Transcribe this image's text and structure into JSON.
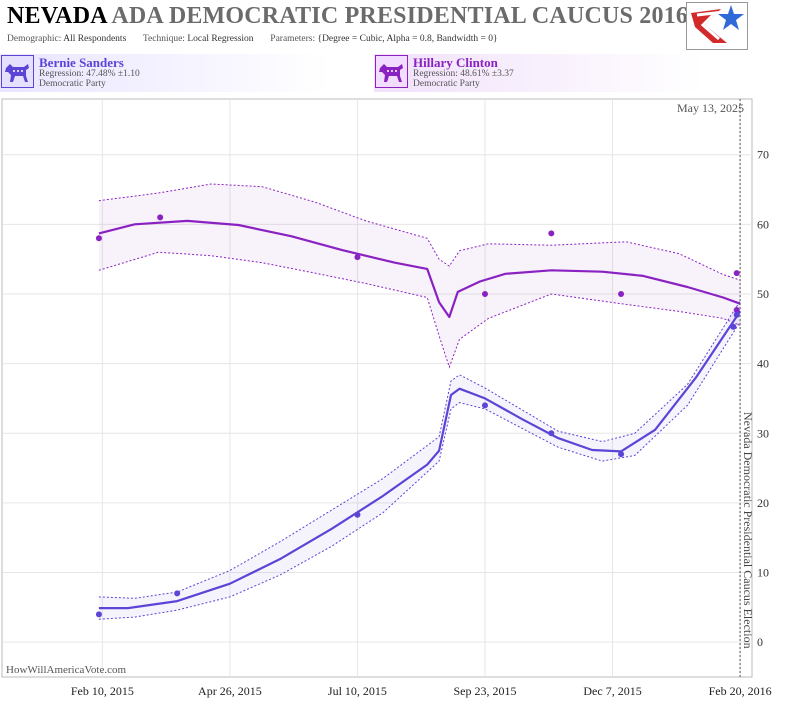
{
  "header": {
    "title_state": "NEVADA",
    "title_rest": "ADA DEMOCRATIC PRESIDENTIAL CAUCUS 2016",
    "demographic_label": "Demographic:",
    "demographic_value": "All Respondents",
    "technique_label": "Technique:",
    "technique_value": "Local Regression",
    "parameters_label": "Parameters:",
    "parameters_value": "{Degree = Cubic, Alpha = 0.8, Bandwidth = 0}"
  },
  "candidates": [
    {
      "name": "Bernie Sanders",
      "regression": "Regression: 47.48% ±1.10",
      "party": "Democratic Party",
      "color": "#5a45d6",
      "icon": "donkey-icon"
    },
    {
      "name": "Hillary Clinton",
      "regression": "Regression: 48.61% ±3.37",
      "party": "Democratic Party",
      "color": "#8a22c2",
      "icon": "donkey-icon"
    }
  ],
  "chart_data": {
    "type": "line",
    "date_annotation": "May 13, 2025",
    "event_label": "Nevada Democratic Presidential Caucus Election",
    "event_date": "2016-02-20",
    "watermark": "HowWillAmericaVote.com",
    "x_ticks": [
      {
        "date": "2015-02-10",
        "label": "Feb 10, 2015"
      },
      {
        "date": "2015-04-26",
        "label": "Apr 26, 2015"
      },
      {
        "date": "2015-07-10",
        "label": "Jul 10, 2015"
      },
      {
        "date": "2015-09-23",
        "label": "Sep 23, 2015"
      },
      {
        "date": "2015-12-07",
        "label": "Dec 7, 2015"
      },
      {
        "date": "2016-02-20",
        "label": "Feb 20, 2016"
      }
    ],
    "xlim": [
      "2014-12-13",
      "2016-02-27"
    ],
    "ylim": [
      -5,
      78
    ],
    "y_ticks": [
      0,
      10,
      20,
      30,
      40,
      50,
      60,
      70
    ],
    "grid": true,
    "series": [
      {
        "name": "Hillary Clinton",
        "color": "#8a22c2",
        "points": [
          {
            "x": "2015-02-08",
            "y": 58
          },
          {
            "x": "2015-03-16",
            "y": 61
          },
          {
            "x": "2015-07-10",
            "y": 55.3
          },
          {
            "x": "2015-09-23",
            "y": 50
          },
          {
            "x": "2015-11-01",
            "y": 58.7
          },
          {
            "x": "2015-12-12",
            "y": 50
          },
          {
            "x": "2016-02-16",
            "y": 45.3
          },
          {
            "x": "2016-02-18",
            "y": 47.7
          },
          {
            "x": "2016-02-18",
            "y": 53
          }
        ],
        "trend": [
          {
            "x": "2015-02-08",
            "y": 58.7
          },
          {
            "x": "2015-03-01",
            "y": 60.0
          },
          {
            "x": "2015-04-01",
            "y": 60.5
          },
          {
            "x": "2015-05-01",
            "y": 59.9
          },
          {
            "x": "2015-06-01",
            "y": 58.3
          },
          {
            "x": "2015-07-01",
            "y": 56.3
          },
          {
            "x": "2015-08-01",
            "y": 54.5
          },
          {
            "x": "2015-08-20",
            "y": 53.6
          },
          {
            "x": "2015-08-27",
            "y": 48.8
          },
          {
            "x": "2015-09-02",
            "y": 46.7
          },
          {
            "x": "2015-09-07",
            "y": 50.3
          },
          {
            "x": "2015-09-20",
            "y": 51.8
          },
          {
            "x": "2015-10-05",
            "y": 52.9
          },
          {
            "x": "2015-11-01",
            "y": 53.4
          },
          {
            "x": "2015-12-01",
            "y": 53.2
          },
          {
            "x": "2015-12-25",
            "y": 52.6
          },
          {
            "x": "2016-01-20",
            "y": 51.0
          },
          {
            "x": "2016-02-10",
            "y": 49.5
          },
          {
            "x": "2016-02-20",
            "y": 48.6
          }
        ],
        "upper": [
          {
            "x": "2015-02-08",
            "y": 63.4
          },
          {
            "x": "2015-03-15",
            "y": 64.5
          },
          {
            "x": "2015-04-15",
            "y": 65.8
          },
          {
            "x": "2015-05-15",
            "y": 65.4
          },
          {
            "x": "2015-06-15",
            "y": 63.2
          },
          {
            "x": "2015-07-15",
            "y": 60.5
          },
          {
            "x": "2015-08-20",
            "y": 58.0
          },
          {
            "x": "2015-08-27",
            "y": 55.0
          },
          {
            "x": "2015-09-02",
            "y": 54.0
          },
          {
            "x": "2015-09-08",
            "y": 56.2
          },
          {
            "x": "2015-09-25",
            "y": 57.2
          },
          {
            "x": "2015-11-01",
            "y": 57.0
          },
          {
            "x": "2015-12-15",
            "y": 57.5
          },
          {
            "x": "2016-01-15",
            "y": 55.8
          },
          {
            "x": "2016-02-10",
            "y": 52.8
          },
          {
            "x": "2016-02-20",
            "y": 52.0
          }
        ],
        "lower": [
          {
            "x": "2015-02-08",
            "y": 53.4
          },
          {
            "x": "2015-03-15",
            "y": 56.0
          },
          {
            "x": "2015-04-15",
            "y": 55.5
          },
          {
            "x": "2015-05-15",
            "y": 54.5
          },
          {
            "x": "2015-06-15",
            "y": 53.0
          },
          {
            "x": "2015-07-15",
            "y": 51.5
          },
          {
            "x": "2015-08-20",
            "y": 49.5
          },
          {
            "x": "2015-08-27",
            "y": 44.0
          },
          {
            "x": "2015-09-02",
            "y": 39.5
          },
          {
            "x": "2015-09-08",
            "y": 43.5
          },
          {
            "x": "2015-09-25",
            "y": 46.5
          },
          {
            "x": "2015-11-01",
            "y": 50.0
          },
          {
            "x": "2015-12-15",
            "y": 48.5
          },
          {
            "x": "2016-01-15",
            "y": 47.5
          },
          {
            "x": "2016-02-10",
            "y": 46.5
          },
          {
            "x": "2016-02-20",
            "y": 45.5
          }
        ]
      },
      {
        "name": "Bernie Sanders",
        "color": "#5a45d6",
        "points": [
          {
            "x": "2015-02-08",
            "y": 4
          },
          {
            "x": "2015-03-26",
            "y": 7
          },
          {
            "x": "2015-07-10",
            "y": 18.3
          },
          {
            "x": "2015-09-23",
            "y": 34
          },
          {
            "x": "2015-11-01",
            "y": 30
          },
          {
            "x": "2015-12-12",
            "y": 27
          },
          {
            "x": "2016-02-16",
            "y": 45.3
          },
          {
            "x": "2016-02-18",
            "y": 47
          }
        ],
        "trend": [
          {
            "x": "2015-02-08",
            "y": 4.9
          },
          {
            "x": "2015-02-25",
            "y": 4.9
          },
          {
            "x": "2015-03-26",
            "y": 5.9
          },
          {
            "x": "2015-04-26",
            "y": 8.4
          },
          {
            "x": "2015-05-26",
            "y": 12.0
          },
          {
            "x": "2015-06-25",
            "y": 16.3
          },
          {
            "x": "2015-07-25",
            "y": 21.0
          },
          {
            "x": "2015-08-20",
            "y": 25.5
          },
          {
            "x": "2015-08-27",
            "y": 27.5
          },
          {
            "x": "2015-09-03",
            "y": 35.5
          },
          {
            "x": "2015-09-08",
            "y": 36.4
          },
          {
            "x": "2015-09-23",
            "y": 35.0
          },
          {
            "x": "2015-10-15",
            "y": 32.0
          },
          {
            "x": "2015-11-05",
            "y": 29.3
          },
          {
            "x": "2015-11-25",
            "y": 27.6
          },
          {
            "x": "2015-12-12",
            "y": 27.4
          },
          {
            "x": "2016-01-01",
            "y": 30.5
          },
          {
            "x": "2016-01-25",
            "y": 38.0
          },
          {
            "x": "2016-02-20",
            "y": 47.5
          }
        ],
        "upper": [
          {
            "x": "2015-02-08",
            "y": 6.5
          },
          {
            "x": "2015-03-01",
            "y": 6.3
          },
          {
            "x": "2015-03-26",
            "y": 7.2
          },
          {
            "x": "2015-04-26",
            "y": 10.3
          },
          {
            "x": "2015-05-26",
            "y": 14.5
          },
          {
            "x": "2015-06-25",
            "y": 19.0
          },
          {
            "x": "2015-07-25",
            "y": 23.5
          },
          {
            "x": "2015-08-27",
            "y": 29.5
          },
          {
            "x": "2015-09-03",
            "y": 37.5
          },
          {
            "x": "2015-09-08",
            "y": 38.4
          },
          {
            "x": "2015-09-23",
            "y": 36.5
          },
          {
            "x": "2015-11-05",
            "y": 30.3
          },
          {
            "x": "2015-12-01",
            "y": 28.8
          },
          {
            "x": "2015-12-20",
            "y": 30.0
          },
          {
            "x": "2016-01-20",
            "y": 37.0
          },
          {
            "x": "2016-02-20",
            "y": 49.0
          }
        ],
        "lower": [
          {
            "x": "2015-02-08",
            "y": 3.3
          },
          {
            "x": "2015-03-01",
            "y": 3.6
          },
          {
            "x": "2015-03-26",
            "y": 4.6
          },
          {
            "x": "2015-04-26",
            "y": 6.5
          },
          {
            "x": "2015-05-26",
            "y": 9.7
          },
          {
            "x": "2015-06-25",
            "y": 13.8
          },
          {
            "x": "2015-07-25",
            "y": 18.6
          },
          {
            "x": "2015-08-27",
            "y": 26.0
          },
          {
            "x": "2015-09-03",
            "y": 33.5
          },
          {
            "x": "2015-09-08",
            "y": 34.4
          },
          {
            "x": "2015-09-23",
            "y": 33.5
          },
          {
            "x": "2015-11-05",
            "y": 28.0
          },
          {
            "x": "2015-12-01",
            "y": 26.0
          },
          {
            "x": "2015-12-20",
            "y": 26.8
          },
          {
            "x": "2016-01-20",
            "y": 34.0
          },
          {
            "x": "2016-02-20",
            "y": 46.0
          }
        ]
      }
    ]
  }
}
